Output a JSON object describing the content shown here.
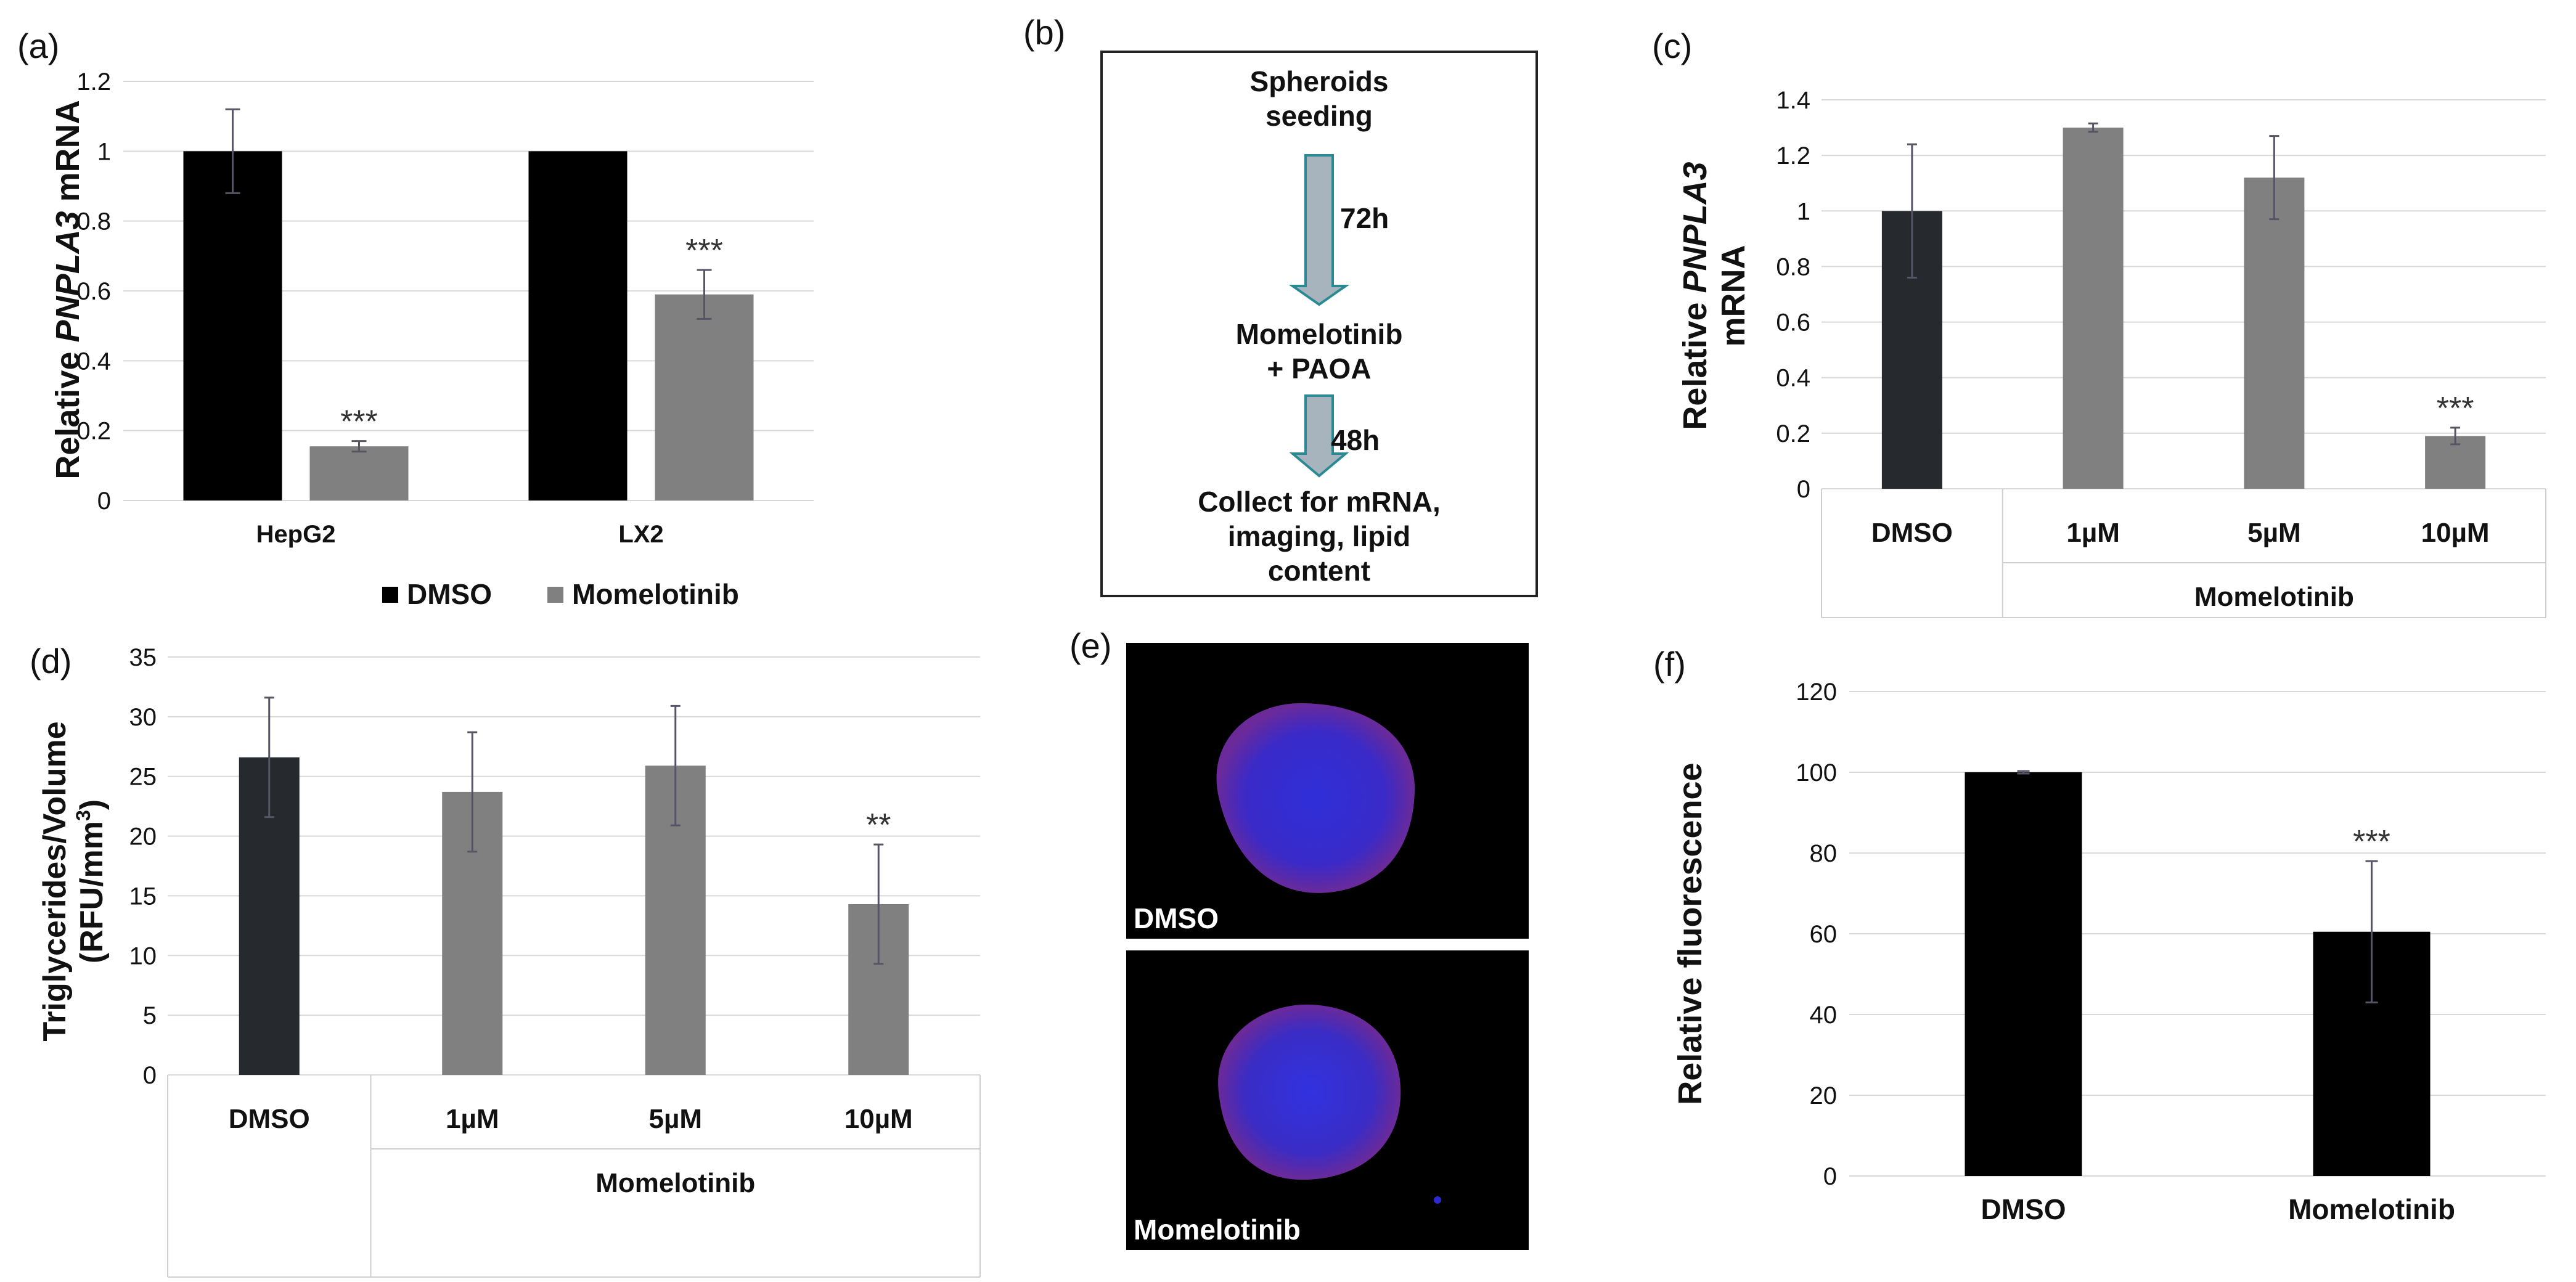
{
  "panels": {
    "a": {
      "label": "(a)",
      "chart_data": {
        "type": "bar",
        "categories": [
          "HepG2",
          "LX2"
        ],
        "series": [
          {
            "name": "DMSO",
            "values": [
              1.0,
              1.0
            ],
            "errors": [
              0.12,
              0.0
            ],
            "color": "#000000"
          },
          {
            "name": "Momelotinib",
            "values": [
              0.155,
              0.59
            ],
            "errors": [
              0.015,
              0.07
            ],
            "color": "#808080"
          }
        ],
        "significance": [
          [
            null,
            null
          ],
          [
            "***",
            "***"
          ]
        ],
        "ylabel_pre": "Relative ",
        "ylabel_gene": "PNPLA3",
        "ylabel_post": " mRNA",
        "yticks": [
          "0",
          "0.2",
          "0.4",
          "0.6",
          "0.8",
          "1",
          "1.2"
        ],
        "ylim": [
          0,
          1.2
        ],
        "legend": [
          "DMSO",
          "Momelotinib"
        ]
      }
    },
    "b": {
      "label": "(b)",
      "steps": [
        "Spheroids",
        "seeding",
        "Momelotinib",
        "+ PAOA",
        "Collect for mRNA,",
        "imaging, lipid",
        "content"
      ],
      "times": [
        "72h",
        "48h"
      ],
      "arrow_color": "#a8b4bd",
      "arrow_stroke": "#2a8a93"
    },
    "c": {
      "label": "(c)",
      "chart_data": {
        "type": "bar",
        "categories": [
          "DMSO",
          "1µM",
          "5µM",
          "10µM"
        ],
        "values": [
          1.0,
          1.3,
          1.12,
          0.19
        ],
        "errors": [
          0.24,
          0.015,
          0.15,
          0.03
        ],
        "colors": [
          "#262a2e",
          "#808080",
          "#808080",
          "#808080"
        ],
        "significance": [
          null,
          null,
          null,
          "***"
        ],
        "ylabel_pre": "Relative ",
        "ylabel_gene": "PNPLA3",
        "ylabel_line2": "mRNA",
        "yticks": [
          "0",
          "0.2",
          "0.4",
          "0.6",
          "0.8",
          "1",
          "1.2",
          "1.4"
        ],
        "ylim": [
          0,
          1.4
        ],
        "group_label": "Momelotinib"
      }
    },
    "d": {
      "label": "(d)",
      "chart_data": {
        "type": "bar",
        "categories": [
          "DMSO",
          "1µM",
          "5µM",
          "10µM"
        ],
        "values": [
          26.6,
          23.7,
          25.9,
          14.3
        ],
        "errors": [
          5.0,
          5.0,
          5.0,
          5.0
        ],
        "colors": [
          "#262a2e",
          "#808080",
          "#808080",
          "#808080"
        ],
        "significance": [
          null,
          null,
          null,
          "**"
        ],
        "ylabel_line1": "Triglycerides/Volume",
        "ylabel_line2": "(RFU/mm",
        "ylabel_sup": "3",
        "ylabel_close": ")",
        "yticks": [
          "0",
          "5",
          "10",
          "15",
          "20",
          "25",
          "30",
          "35"
        ],
        "ylim": [
          0,
          35
        ],
        "group_label": "Momelotinib"
      }
    },
    "e": {
      "label": "(e)",
      "images": [
        "DMSO",
        "Momelotinib"
      ]
    },
    "f": {
      "label": "(f)",
      "chart_data": {
        "type": "bar",
        "categories": [
          "DMSO",
          "Momelotinib"
        ],
        "values": [
          100,
          60.5
        ],
        "errors": [
          0.3,
          17.5
        ],
        "colors": [
          "#000000",
          "#000000"
        ],
        "significance": [
          null,
          "***"
        ],
        "ylabel": "Relative fluorescence",
        "yticks": [
          "0",
          "20",
          "40",
          "60",
          "80",
          "100",
          "120"
        ],
        "ylim": [
          0,
          120
        ]
      }
    }
  }
}
